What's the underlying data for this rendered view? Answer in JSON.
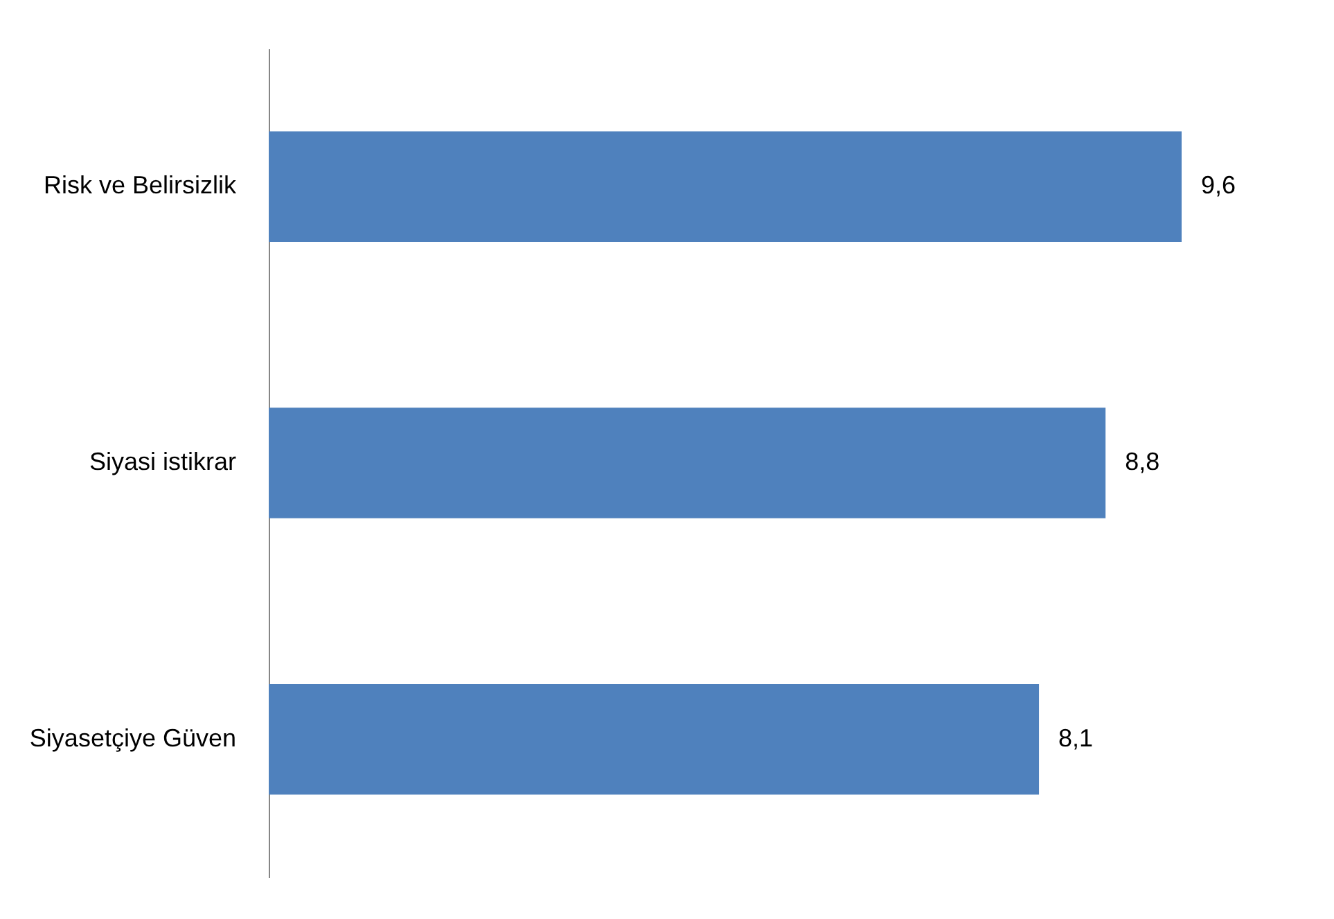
{
  "chart_data": {
    "type": "bar",
    "orientation": "horizontal",
    "categories": [
      "Risk ve Belirsizlik",
      "Siyasi istikrar",
      "Siyasetçiye Güven"
    ],
    "values": [
      9.6,
      8.8,
      8.1
    ],
    "value_labels": [
      "9,6",
      "8,8",
      "8,1"
    ],
    "color": "#4f81bd",
    "tick_labels": "y"
  }
}
